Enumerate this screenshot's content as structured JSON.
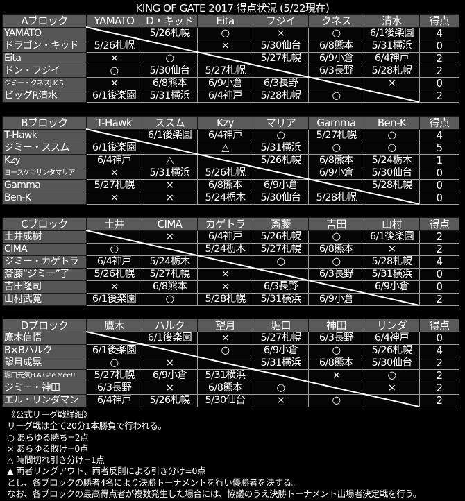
{
  "title": "KING OF GATE 2017 得点状況 (5/22現在)",
  "points_label": "得点",
  "blocks": [
    {
      "label": "Aブロック",
      "columns": [
        "YAMATO",
        "D・キッド",
        "Eita",
        "フジイ",
        "クネス",
        "清水"
      ],
      "rows": [
        {
          "name": "YAMATO",
          "cells": [
            "",
            "5/26札幌",
            "○",
            "×",
            "○",
            "6/1後楽園"
          ],
          "points": "4"
        },
        {
          "name": "ドラゴン・キッド",
          "cells": [
            "5/26札幌",
            "",
            "×",
            "5/30仙台",
            "6/8熊本",
            "5/31横浜"
          ],
          "points": "0"
        },
        {
          "name": "Eita",
          "cells": [
            "×",
            "○",
            "",
            "5/27札幌",
            "6/9小倉",
            "6/4神戸"
          ],
          "points": "2"
        },
        {
          "name": "ドン・フジイ",
          "cells": [
            "○",
            "5/30仙台",
            "5/27札幌",
            "",
            "6/3長野",
            "5/28札幌"
          ],
          "points": "2"
        },
        {
          "name": "ジミー・クネスJ.K.S.",
          "cells": [
            "×",
            "6/8熊本",
            "6/9小倉",
            "6/3長野",
            "",
            "×"
          ],
          "points": "0"
        },
        {
          "name": "ビッグR清水",
          "cells": [
            "6/1後楽園",
            "5/31横浜",
            "6/4神戸",
            "5/28札幌",
            "○",
            ""
          ],
          "points": "2"
        }
      ]
    },
    {
      "label": "Bブロック",
      "columns": [
        "T-Hawk",
        "ススム",
        "Kzy",
        "マリア",
        "Gamma",
        "Ben-K"
      ],
      "rows": [
        {
          "name": "T-Hawk",
          "cells": [
            "",
            "6/1後楽園",
            "6/4神戸",
            "○",
            "5/27札幌",
            "○"
          ],
          "points": "4"
        },
        {
          "name": "ジミー・ススム",
          "cells": [
            "6/1後楽園",
            "",
            "△",
            "5/31横浜",
            "○",
            "○"
          ],
          "points": "5"
        },
        {
          "name": "Kzy",
          "cells": [
            "6/4神戸",
            "△",
            "",
            "5/26札幌",
            "6/8熊本",
            "5/24栃木"
          ],
          "points": "1"
        },
        {
          "name": "ヨースケ♡サンタマリア",
          "cells": [
            "×",
            "5/31横浜",
            "5/26札幌",
            "",
            "6/9小倉",
            "5/30仙台"
          ],
          "points": "0"
        },
        {
          "name": "Gamma",
          "cells": [
            "5/27札幌",
            "×",
            "6/8熊本",
            "6/9小倉",
            "",
            "5/28札幌"
          ],
          "points": "0"
        },
        {
          "name": "Ben-K",
          "cells": [
            "×",
            "×",
            "5/24栃木",
            "5/30仙台",
            "5/28札幌",
            ""
          ],
          "points": "0"
        }
      ]
    },
    {
      "label": "Cブロック",
      "columns": [
        "土井",
        "CIMA",
        "カゲトラ",
        "斎藤",
        "吉田",
        "山村"
      ],
      "rows": [
        {
          "name": "土井成樹",
          "cells": [
            "",
            "×",
            "6/4神戸",
            "5/26札幌",
            "○",
            "6/1後楽園"
          ],
          "points": "2"
        },
        {
          "name": "CIMA",
          "cells": [
            "○",
            "",
            "5/24栃木",
            "5/27札幌",
            "6/8熊本",
            "×"
          ],
          "points": "2"
        },
        {
          "name": "ジミー・カゲトラ",
          "cells": [
            "6/4神戸",
            "5/24栃木",
            "",
            "○",
            "○",
            "5/28札幌"
          ],
          "points": "4"
        },
        {
          "name": "斎藤“ジミー”了",
          "cells": [
            "5/26札幌",
            "5/27札幌",
            "×",
            "",
            "6/3長野",
            "5/31横浜"
          ],
          "points": "0"
        },
        {
          "name": "吉田隆司",
          "cells": [
            "×",
            "6/8熊本",
            "×",
            "6/3長野",
            "",
            "6/9小倉"
          ],
          "points": "0"
        },
        {
          "name": "山村武寛",
          "cells": [
            "6/1後楽園",
            "○",
            "5/28札幌",
            "5/31横浜",
            "6/9小倉",
            ""
          ],
          "points": "2"
        }
      ]
    },
    {
      "label": "Dブロック",
      "columns": [
        "鷹木",
        "ハルク",
        "望月",
        "堀口",
        "神田",
        "リンダ"
      ],
      "rows": [
        {
          "name": "鷹木信悟",
          "cells": [
            "",
            "6/1後楽園",
            "×",
            "5/27札幌",
            "6/3長野",
            "6/4神戸"
          ],
          "points": "0"
        },
        {
          "name": "B×Bハルク",
          "cells": [
            "6/1後楽園",
            "",
            "○",
            "6/9小倉",
            "○",
            "5/26札幌"
          ],
          "points": "4"
        },
        {
          "name": "望月成晃",
          "cells": [
            "○",
            "×",
            "",
            "5/31横浜",
            "6/8熊本",
            "5/30仙台"
          ],
          "points": "2"
        },
        {
          "name": "堀口元気H.A.Gee.Mee!!",
          "cells": [
            "5/27札幌",
            "6/9小倉",
            "5/31横浜",
            "",
            "×",
            "○"
          ],
          "points": "2"
        },
        {
          "name": "ジミー・神田",
          "cells": [
            "6/3長野",
            "×",
            "6/8熊本",
            "○",
            "",
            "×"
          ],
          "points": "2"
        },
        {
          "name": "エル・リンダマン",
          "cells": [
            "6/4神戸",
            "5/26札幌",
            "5/30仙台",
            "×",
            "○",
            ""
          ],
          "points": "2"
        }
      ]
    }
  ],
  "notes": [
    "《公式リーグ戦詳細》",
    "リーグ戦は全て20分1本勝負で行われる。",
    "○ あらゆる勝ち=2点",
    "× あらゆる敗け=0点",
    "△ 時間切れ引き分け=1点",
    "▲ 両者リングアウト、両者反則による引き分け=0点",
    "とし、各ブロックの勝者4名により決勝トーナメントを行い優勝者を決する。",
    "なお、各ブロックの最高得点者が複数発生した場合には、協議のうえ決勝トーナメント出場者決定戦を行う。"
  ]
}
